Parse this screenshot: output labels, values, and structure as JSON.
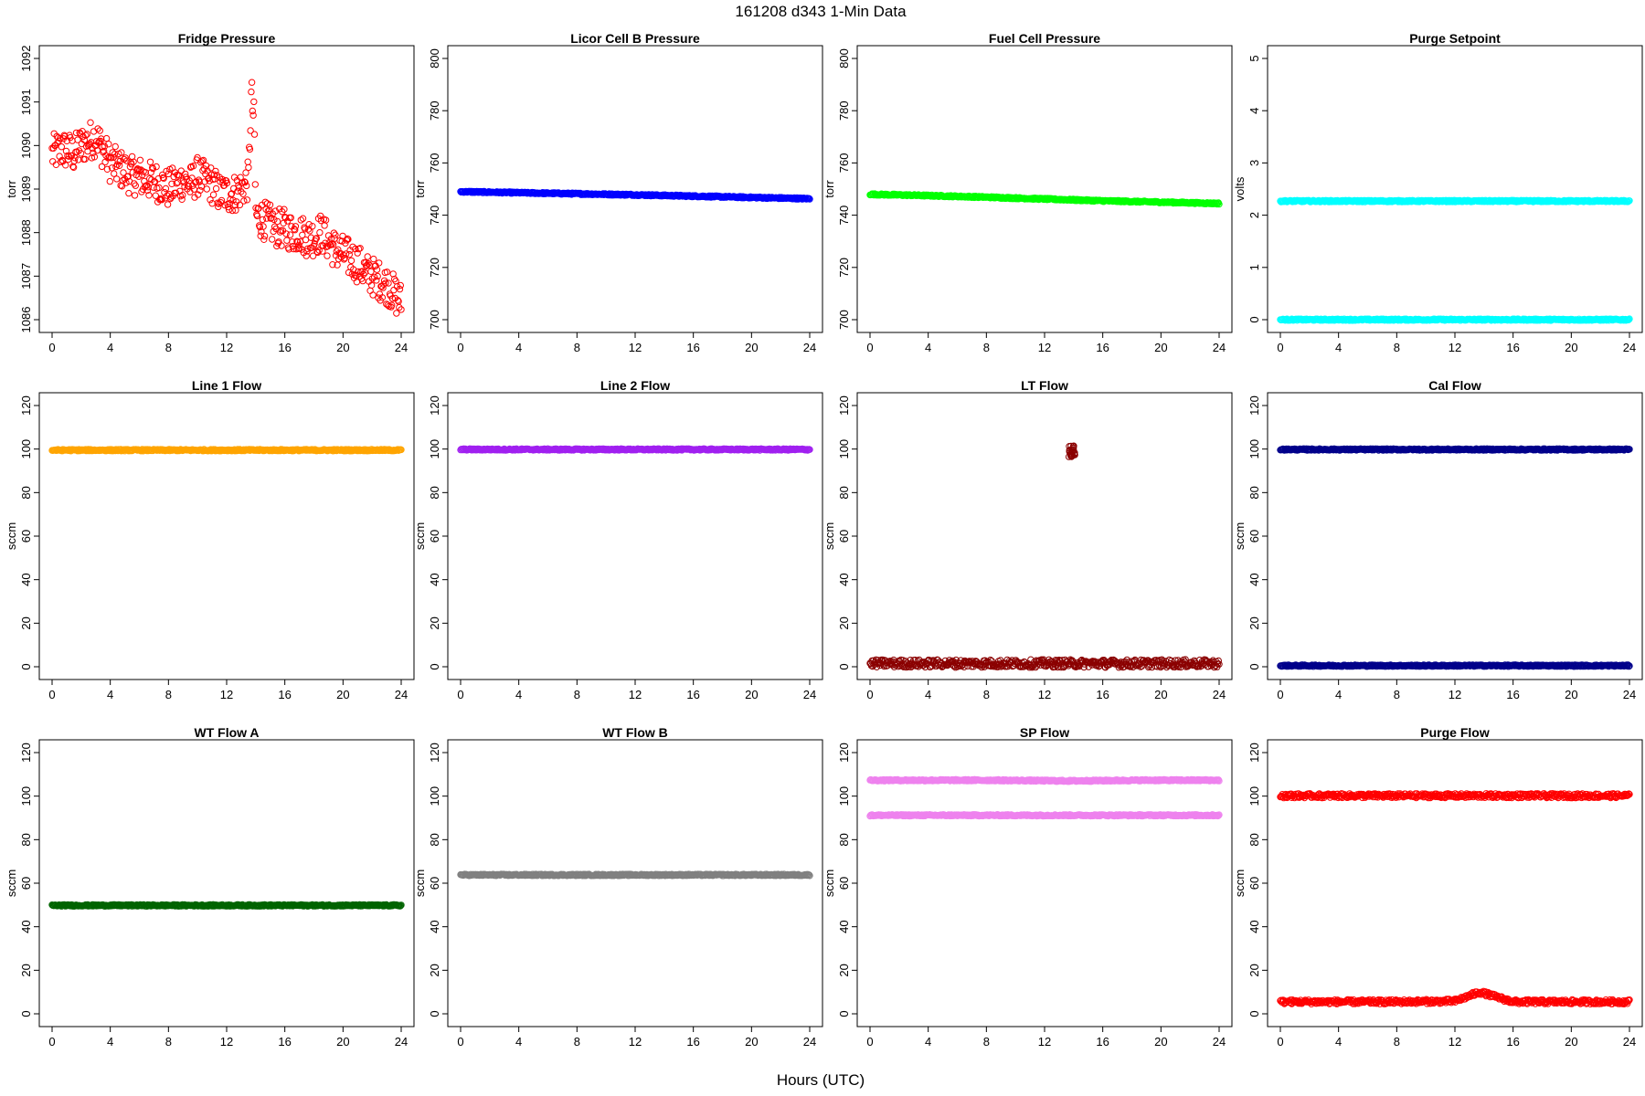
{
  "page": {
    "title": "161208   d343   1-Min Data",
    "xlabel": "Hours (UTC)"
  },
  "chart_data": [
    {
      "type": "scatter",
      "title": "Fridge Pressure",
      "ylabel": "torr",
      "xlim": [
        0,
        24
      ],
      "ylim": [
        1086,
        1092
      ],
      "xticks": [
        0,
        4,
        8,
        12,
        16,
        20,
        24
      ],
      "yticks": [
        1086,
        1087,
        1088,
        1089,
        1090,
        1091,
        1092
      ],
      "color": "#ff0000",
      "marker": "open-circle",
      "series": [
        {
          "x": [
            0,
            0.5,
            1,
            1.5,
            2,
            2.5,
            3,
            3.5,
            4,
            4.5,
            5,
            5.5,
            6,
            6.5,
            7,
            7.5,
            8,
            8.5,
            9,
            9.5,
            10,
            10.5,
            11,
            11.5,
            12,
            12.5,
            13,
            13.5,
            13.7,
            13.8,
            13.9,
            14,
            14.5,
            15,
            15.5,
            16,
            16.5,
            17,
            17.5,
            18,
            18.5,
            19,
            19.5,
            20,
            20.5,
            21,
            21.5,
            22,
            22.5,
            23,
            23.5,
            24
          ],
          "y": [
            1089.8,
            1089.9,
            1089.9,
            1089.8,
            1090.0,
            1090.1,
            1090.2,
            1089.9,
            1089.6,
            1089.5,
            1089.4,
            1089.3,
            1089.3,
            1089.2,
            1089.2,
            1089.1,
            1089.0,
            1089.1,
            1089.2,
            1089.1,
            1089.3,
            1089.2,
            1089.1,
            1088.9,
            1088.9,
            1088.9,
            1089.0,
            1089.2,
            1091.2,
            1090.8,
            1090.5,
            1088.4,
            1088.3,
            1088.2,
            1088.1,
            1088.1,
            1088.0,
            1088.0,
            1087.9,
            1087.9,
            1088.0,
            1087.8,
            1087.6,
            1087.5,
            1087.4,
            1087.3,
            1087.1,
            1087.0,
            1086.9,
            1086.8,
            1086.6,
            1086.4
          ]
        }
      ]
    },
    {
      "type": "scatter",
      "title": "Licor Cell B Pressure",
      "ylabel": "torr",
      "xlim": [
        0,
        24
      ],
      "ylim": [
        700,
        800
      ],
      "xticks": [
        0,
        4,
        8,
        12,
        16,
        20,
        24
      ],
      "yticks": [
        700,
        720,
        740,
        760,
        780,
        800
      ],
      "color": "#0000ff",
      "marker": "open-circle",
      "series": [
        {
          "x": [
            0,
            4,
            8,
            12,
            16,
            20,
            24
          ],
          "y": [
            749,
            748.6,
            748.2,
            747.8,
            747.3,
            746.8,
            746.3
          ]
        }
      ]
    },
    {
      "type": "scatter",
      "title": "Fuel Cell Pressure",
      "ylabel": "torr",
      "xlim": [
        0,
        24
      ],
      "ylim": [
        700,
        800
      ],
      "xticks": [
        0,
        4,
        8,
        12,
        16,
        20,
        24
      ],
      "yticks": [
        700,
        720,
        740,
        760,
        780,
        800
      ],
      "color": "#00ff00",
      "marker": "open-circle",
      "series": [
        {
          "x": [
            0,
            4,
            8,
            12,
            16,
            20,
            24
          ],
          "y": [
            748,
            747.5,
            746.9,
            746.2,
            745.5,
            745.0,
            744.5
          ]
        }
      ]
    },
    {
      "type": "scatter",
      "title": "Purge Setpoint",
      "ylabel": "volts",
      "xlim": [
        0,
        24
      ],
      "ylim": [
        0,
        5
      ],
      "xticks": [
        0,
        4,
        8,
        12,
        16,
        20,
        24
      ],
      "yticks": [
        0,
        1,
        2,
        3,
        4,
        5
      ],
      "color": "#00ffff",
      "marker": "open-circle",
      "series": [
        {
          "x": [
            0,
            24
          ],
          "y": [
            0,
            0
          ]
        },
        {
          "x": [
            3.7,
            8.7,
            13.6,
            18.7,
            23.7
          ],
          "y": [
            2.27,
            2.27,
            2.27,
            2.27,
            2.27
          ]
        }
      ]
    },
    {
      "type": "scatter",
      "title": "Line 1 Flow",
      "ylabel": "sccm",
      "xlim": [
        0,
        24
      ],
      "ylim": [
        0,
        120
      ],
      "xticks": [
        0,
        4,
        8,
        12,
        16,
        20,
        24
      ],
      "yticks": [
        0,
        20,
        40,
        60,
        80,
        100,
        120
      ],
      "color": "#ffa500",
      "marker": "open-circle",
      "series": [
        {
          "x": [
            0,
            24
          ],
          "y": [
            99.5,
            99.5
          ]
        }
      ]
    },
    {
      "type": "scatter",
      "title": "Line 2 Flow",
      "ylabel": "sccm",
      "xlim": [
        0,
        24
      ],
      "ylim": [
        0,
        120
      ],
      "xticks": [
        0,
        4,
        8,
        12,
        16,
        20,
        24
      ],
      "yticks": [
        0,
        20,
        40,
        60,
        80,
        100,
        120
      ],
      "color": "#a020f0",
      "marker": "open-circle",
      "series": [
        {
          "x": [
            0,
            24
          ],
          "y": [
            99.8,
            99.8
          ]
        }
      ]
    },
    {
      "type": "scatter",
      "title": "LT Flow",
      "ylabel": "sccm",
      "xlim": [
        0,
        24
      ],
      "ylim": [
        0,
        120
      ],
      "xticks": [
        0,
        4,
        8,
        12,
        16,
        20,
        24
      ],
      "yticks": [
        0,
        20,
        40,
        60,
        80,
        100,
        120
      ],
      "color": "#8b0000",
      "marker": "open-circle",
      "series": [
        {
          "x": [
            0,
            24
          ],
          "y": [
            1.5,
            1.5
          ]
        },
        {
          "x": [
            13.7,
            13.75,
            13.8,
            13.85
          ],
          "y": [
            97,
            99,
            101,
            98
          ]
        }
      ]
    },
    {
      "type": "scatter",
      "title": "Cal Flow",
      "ylabel": "sccm",
      "xlim": [
        0,
        24
      ],
      "ylim": [
        0,
        120
      ],
      "xticks": [
        0,
        4,
        8,
        12,
        16,
        20,
        24
      ],
      "yticks": [
        0,
        20,
        40,
        60,
        80,
        100,
        120
      ],
      "color": "#00008b",
      "marker": "open-circle",
      "series": [
        {
          "x": [
            0,
            24
          ],
          "y": [
            0.5,
            0.5
          ]
        },
        {
          "x": [
            3.7,
            8.7,
            13.6,
            18.7,
            23.7
          ],
          "y": [
            99.8,
            99.8,
            99.8,
            99.8,
            99.8
          ]
        }
      ]
    },
    {
      "type": "scatter",
      "title": "WT Flow A",
      "ylabel": "sccm",
      "xlim": [
        0,
        24
      ],
      "ylim": [
        0,
        120
      ],
      "xticks": [
        0,
        4,
        8,
        12,
        16,
        20,
        24
      ],
      "yticks": [
        0,
        20,
        40,
        60,
        80,
        100,
        120
      ],
      "color": "#006400",
      "marker": "open-circle",
      "series": [
        {
          "x": [
            0,
            24
          ],
          "y": [
            49.8,
            49.8
          ]
        }
      ]
    },
    {
      "type": "scatter",
      "title": "WT Flow B",
      "ylabel": "sccm",
      "xlim": [
        0,
        24
      ],
      "ylim": [
        0,
        120
      ],
      "xticks": [
        0,
        4,
        8,
        12,
        16,
        20,
        24
      ],
      "yticks": [
        0,
        20,
        40,
        60,
        80,
        100,
        120
      ],
      "color": "#808080",
      "marker": "open-circle",
      "series": [
        {
          "x": [
            0,
            24
          ],
          "y": [
            63.8,
            63.8
          ]
        }
      ]
    },
    {
      "type": "scatter",
      "title": "SP Flow",
      "ylabel": "sccm",
      "xlim": [
        0,
        24
      ],
      "ylim": [
        0,
        120
      ],
      "xticks": [
        0,
        4,
        8,
        12,
        16,
        20,
        24
      ],
      "yticks": [
        0,
        20,
        40,
        60,
        80,
        100,
        120
      ],
      "color": "#ee82ee",
      "marker": "open-circle",
      "series": [
        {
          "x": [
            0,
            24
          ],
          "y": [
            91.2,
            91.2
          ]
        },
        {
          "x": [
            3.7,
            8.7,
            13.6,
            18.7,
            23.7
          ],
          "y": [
            107.3,
            107.3,
            107.0,
            107.3,
            107.3
          ]
        }
      ]
    },
    {
      "type": "scatter",
      "title": "Purge Flow",
      "ylabel": "sccm",
      "xlim": [
        0,
        24
      ],
      "ylim": [
        0,
        120
      ],
      "xticks": [
        0,
        4,
        8,
        12,
        16,
        20,
        24
      ],
      "yticks": [
        0,
        20,
        40,
        60,
        80,
        100,
        120
      ],
      "color": "#ff0000",
      "marker": "open-circle",
      "series": [
        {
          "x": [
            0,
            4,
            8,
            12,
            13.7,
            16,
            20,
            24
          ],
          "y": [
            5.5,
            5.5,
            5.5,
            5.8,
            10,
            5.5,
            5.5,
            5.5
          ]
        },
        {
          "x": [
            3.7,
            8.7,
            13.6,
            18.7,
            23.7
          ],
          "y": [
            100.2,
            100.2,
            100.2,
            100.2,
            100.2
          ]
        }
      ]
    }
  ]
}
